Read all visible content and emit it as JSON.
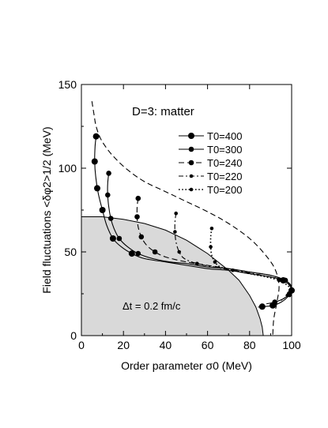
{
  "chart_data": {
    "type": "line",
    "annotation_title": "D=3: matter",
    "annotation_dt": "Δt = 0.2 fm/c",
    "xlabel": "Order parameter σ0 (MeV)",
    "ylabel": "Field fluctuations <δφ2>1/2 (MeV)",
    "xlim": [
      0,
      100
    ],
    "ylim": [
      0,
      150
    ],
    "x_ticks": [
      0,
      20,
      40,
      60,
      80,
      100
    ],
    "y_ticks": [
      0,
      50,
      100,
      150
    ],
    "grid": false,
    "legend_position": "top-right",
    "region": {
      "fill": "#d9d9d9",
      "boundary": [
        [
          0,
          71
        ],
        [
          10,
          71
        ],
        [
          20,
          69.5
        ],
        [
          30,
          67
        ],
        [
          40,
          63
        ],
        [
          50,
          57
        ],
        [
          60,
          49
        ],
        [
          70,
          39
        ],
        [
          75,
          33
        ],
        [
          80,
          24
        ],
        [
          83,
          17
        ],
        [
          85,
          10
        ],
        [
          86,
          5
        ],
        [
          86.5,
          0
        ]
      ]
    },
    "series": [
      {
        "name": "T0=400",
        "style": "solid",
        "marker": "large",
        "values": [
          [
            7,
            119
          ],
          [
            6.5,
            113
          ],
          [
            6.3,
            104
          ],
          [
            6.8,
            95
          ],
          [
            8,
            85
          ],
          [
            10,
            75
          ],
          [
            12,
            66
          ],
          [
            15,
            58
          ],
          [
            19,
            53
          ],
          [
            24,
            49
          ],
          [
            30,
            46
          ],
          [
            40,
            44
          ],
          [
            50,
            42
          ],
          [
            60,
            40
          ],
          [
            70,
            39
          ],
          [
            80,
            37
          ],
          [
            90,
            35
          ],
          [
            96,
            33
          ],
          [
            99,
            30
          ],
          [
            100,
            27
          ],
          [
            98,
            23
          ],
          [
            95,
            20
          ],
          [
            91,
            18
          ],
          [
            88,
            17.5
          ],
          [
            86,
            17.3
          ],
          [
            84,
            17
          ]
        ],
        "marker_points": [
          [
            7,
            119
          ],
          [
            6.3,
            104
          ],
          [
            7.5,
            88
          ],
          [
            10,
            75
          ],
          [
            15,
            58
          ],
          [
            24,
            49
          ],
          [
            96,
            33
          ],
          [
            100,
            27
          ],
          [
            91,
            18
          ],
          [
            86,
            17.3
          ]
        ]
      },
      {
        "name": "T0=300",
        "style": "solid",
        "marker": "medium",
        "values": [
          [
            13,
            97
          ],
          [
            12.5,
            91
          ],
          [
            12.5,
            84
          ],
          [
            13,
            77
          ],
          [
            14,
            70
          ],
          [
            15.5,
            64
          ],
          [
            18,
            58
          ],
          [
            22,
            53
          ],
          [
            27,
            49
          ],
          [
            34,
            46
          ],
          [
            42,
            44
          ],
          [
            50,
            43
          ],
          [
            60,
            41
          ],
          [
            70,
            40
          ],
          [
            80,
            38
          ],
          [
            90,
            36
          ],
          [
            97,
            33
          ],
          [
            100,
            29
          ],
          [
            99,
            25
          ],
          [
            96,
            22
          ],
          [
            92,
            20
          ],
          [
            88,
            19
          ]
        ],
        "marker_points": [
          [
            13,
            97
          ],
          [
            12.5,
            84
          ],
          [
            14,
            70
          ],
          [
            18,
            58
          ],
          [
            27,
            49
          ],
          [
            97,
            33
          ],
          [
            99,
            25
          ],
          [
            92,
            20
          ]
        ]
      },
      {
        "name": "T0=240",
        "style": "dashed",
        "marker": "medium",
        "values": [
          [
            27,
            82
          ],
          [
            26.5,
            77
          ],
          [
            26.5,
            71
          ],
          [
            27,
            65
          ],
          [
            28.5,
            59
          ],
          [
            31,
            54
          ],
          [
            35,
            50
          ],
          [
            40,
            47
          ],
          [
            50,
            44
          ],
          [
            60,
            42
          ],
          [
            70,
            40
          ],
          [
            80,
            38
          ],
          [
            90,
            36
          ],
          [
            97,
            33
          ],
          [
            100,
            29
          ],
          [
            99,
            25
          ],
          [
            96,
            22
          ]
        ],
        "marker_points": [
          [
            27,
            82
          ],
          [
            26.5,
            71
          ],
          [
            28.5,
            59
          ],
          [
            35,
            50
          ],
          [
            97,
            33
          ],
          [
            99,
            25
          ]
        ]
      },
      {
        "name": "T0=220",
        "style": "dash-dot",
        "marker": "small",
        "values": [
          [
            45,
            73
          ],
          [
            44.5,
            68
          ],
          [
            44.5,
            62
          ],
          [
            45,
            56
          ],
          [
            46.5,
            50
          ],
          [
            49,
            46
          ],
          [
            55,
            43
          ],
          [
            63,
            41
          ],
          [
            72,
            39
          ],
          [
            82,
            37
          ],
          [
            90,
            35
          ],
          [
            97,
            33
          ],
          [
            100,
            28
          ],
          [
            98,
            24
          ],
          [
            95,
            21
          ]
        ],
        "marker_points": [
          [
            45,
            73
          ],
          [
            44.5,
            62
          ],
          [
            46.5,
            50
          ],
          [
            55,
            43
          ],
          [
            97,
            33
          ],
          [
            98,
            24
          ]
        ]
      },
      {
        "name": "T0=200",
        "style": "dotted",
        "marker": "small",
        "values": [
          [
            62,
            64
          ],
          [
            61.5,
            59
          ],
          [
            61.5,
            53
          ],
          [
            62,
            48
          ],
          [
            63.5,
            44
          ],
          [
            66,
            41
          ],
          [
            72,
            39
          ],
          [
            80,
            37
          ],
          [
            88,
            35
          ],
          [
            94,
            33
          ],
          [
            98,
            30
          ],
          [
            100,
            27
          ],
          [
            99,
            24
          ]
        ],
        "marker_points": [
          [
            62,
            64
          ],
          [
            61.5,
            53
          ],
          [
            63.5,
            44
          ],
          [
            72,
            39
          ],
          [
            94,
            33
          ],
          [
            99,
            24
          ]
        ]
      },
      {
        "name": "",
        "style": "dashed",
        "marker": "none",
        "values": [
          [
            5,
            140
          ],
          [
            6,
            132
          ],
          [
            7,
            125
          ],
          [
            9,
            118
          ],
          [
            12,
            112
          ],
          [
            16,
            106
          ],
          [
            22,
            99
          ],
          [
            30,
            92
          ],
          [
            40,
            86
          ],
          [
            50,
            80
          ],
          [
            60,
            74
          ],
          [
            70,
            67
          ],
          [
            80,
            58
          ],
          [
            87,
            49
          ],
          [
            92,
            40
          ],
          [
            94,
            30
          ],
          [
            93,
            20
          ],
          [
            91.5,
            10
          ],
          [
            91,
            0
          ]
        ],
        "marker_points": []
      }
    ]
  }
}
